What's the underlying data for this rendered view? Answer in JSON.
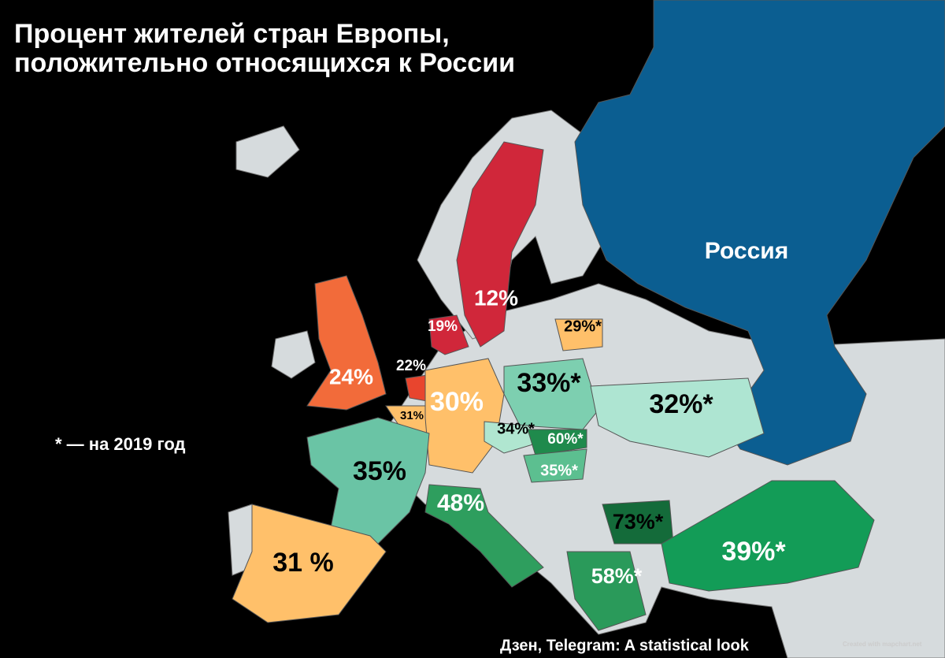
{
  "header": {
    "title_lines": [
      "Процент жителей стран Европы,",
      "положительно относящихся к России"
    ]
  },
  "note": "* — на 2019 год",
  "regions": [
    {
      "name": "Россия"
    },
    {
      "label": "12%"
    },
    {
      "label": "19%"
    },
    {
      "label": "29%*"
    },
    {
      "label": "24%"
    },
    {
      "label": "22%"
    },
    {
      "label": "33%*"
    },
    {
      "label": "32%*"
    },
    {
      "label": "31%"
    },
    {
      "label": "30%"
    },
    {
      "label": "34%*"
    },
    {
      "label": "60%*"
    },
    {
      "label": "35%*"
    },
    {
      "label": "35%"
    },
    {
      "label": "48%"
    },
    {
      "label": "73%*"
    },
    {
      "label": "39%*"
    },
    {
      "label": "58%*"
    },
    {
      "label": "31 %"
    }
  ],
  "source": "Дзен, Telegram: A statistical look",
  "watermark": "Created with mapchart.net"
}
